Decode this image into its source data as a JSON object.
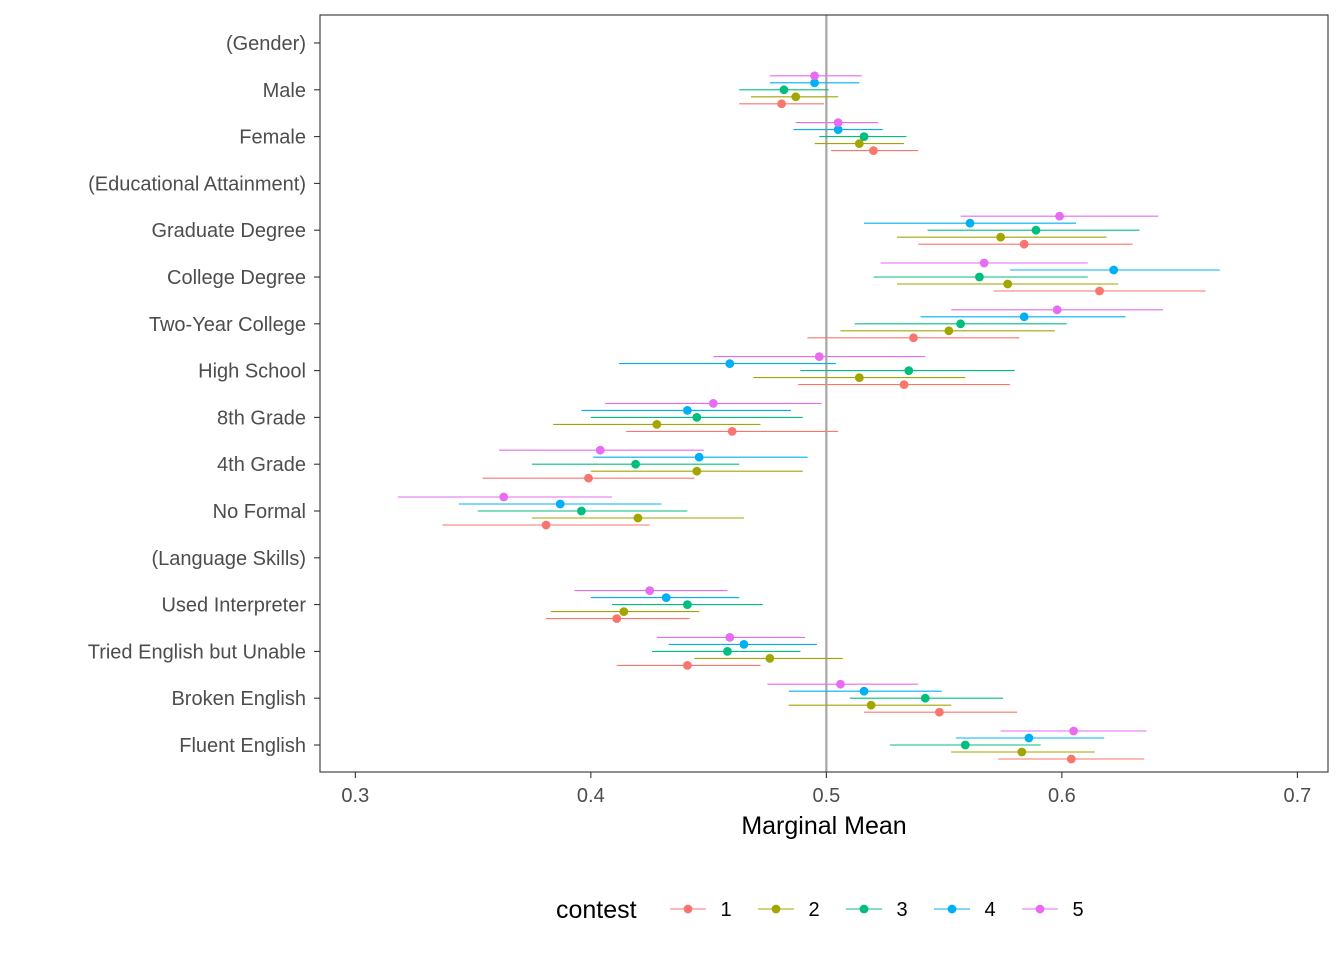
{
  "chart_data": {
    "type": "scatter",
    "subtype": "coefficient-plot-with-error-bars",
    "xlabel": "Marginal Mean",
    "ylabel": "",
    "xlim": [
      0.285,
      0.713
    ],
    "x_ticks": [
      "0.3",
      "0.4",
      "0.5",
      "0.6",
      "0.7"
    ],
    "reference_line": 0.5,
    "grid": false,
    "legend_position": "bottom",
    "legend": {
      "title": "contest",
      "entries": [
        {
          "name": "1",
          "color": "#F8766D"
        },
        {
          "name": "2",
          "color": "#A3A500"
        },
        {
          "name": "3",
          "color": "#00BF7D"
        },
        {
          "name": "4",
          "color": "#00B0F6"
        },
        {
          "name": "5",
          "color": "#E76BF3"
        }
      ]
    },
    "categories": [
      "(Gender)",
      "Male",
      "Female",
      "(Educational Attainment)",
      "Graduate Degree",
      "College Degree",
      "Two-Year College",
      "High School",
      "8th Grade",
      "4th Grade",
      "No Formal",
      "(Language Skills)",
      "Used Interpreter",
      "Tried English but Unable",
      "Broken English",
      "Fluent English"
    ],
    "series": [
      {
        "name": "1",
        "points": [
          {
            "category": "Male",
            "estimate": 0.481,
            "lower": 0.463,
            "upper": 0.499
          },
          {
            "category": "Female",
            "estimate": 0.52,
            "lower": 0.502,
            "upper": 0.539
          },
          {
            "category": "Graduate Degree",
            "estimate": 0.584,
            "lower": 0.539,
            "upper": 0.63
          },
          {
            "category": "College Degree",
            "estimate": 0.616,
            "lower": 0.571,
            "upper": 0.661
          },
          {
            "category": "Two-Year College",
            "estimate": 0.537,
            "lower": 0.492,
            "upper": 0.582
          },
          {
            "category": "High School",
            "estimate": 0.533,
            "lower": 0.488,
            "upper": 0.578
          },
          {
            "category": "8th Grade",
            "estimate": 0.46,
            "lower": 0.415,
            "upper": 0.505
          },
          {
            "category": "4th Grade",
            "estimate": 0.399,
            "lower": 0.354,
            "upper": 0.444
          },
          {
            "category": "No Formal",
            "estimate": 0.381,
            "lower": 0.337,
            "upper": 0.425
          },
          {
            "category": "Used Interpreter",
            "estimate": 0.411,
            "lower": 0.381,
            "upper": 0.442
          },
          {
            "category": "Tried English but Unable",
            "estimate": 0.441,
            "lower": 0.411,
            "upper": 0.472
          },
          {
            "category": "Broken English",
            "estimate": 0.548,
            "lower": 0.516,
            "upper": 0.581
          },
          {
            "category": "Fluent English",
            "estimate": 0.604,
            "lower": 0.573,
            "upper": 0.635
          }
        ]
      },
      {
        "name": "2",
        "points": [
          {
            "category": "Male",
            "estimate": 0.487,
            "lower": 0.468,
            "upper": 0.505
          },
          {
            "category": "Female",
            "estimate": 0.514,
            "lower": 0.495,
            "upper": 0.533
          },
          {
            "category": "Graduate Degree",
            "estimate": 0.574,
            "lower": 0.53,
            "upper": 0.619
          },
          {
            "category": "College Degree",
            "estimate": 0.577,
            "lower": 0.53,
            "upper": 0.624
          },
          {
            "category": "Two-Year College",
            "estimate": 0.552,
            "lower": 0.506,
            "upper": 0.597
          },
          {
            "category": "High School",
            "estimate": 0.514,
            "lower": 0.469,
            "upper": 0.559
          },
          {
            "category": "8th Grade",
            "estimate": 0.428,
            "lower": 0.384,
            "upper": 0.472
          },
          {
            "category": "4th Grade",
            "estimate": 0.445,
            "lower": 0.4,
            "upper": 0.49
          },
          {
            "category": "No Formal",
            "estimate": 0.42,
            "lower": 0.375,
            "upper": 0.465
          },
          {
            "category": "Used Interpreter",
            "estimate": 0.414,
            "lower": 0.383,
            "upper": 0.446
          },
          {
            "category": "Tried English but Unable",
            "estimate": 0.476,
            "lower": 0.444,
            "upper": 0.507
          },
          {
            "category": "Broken English",
            "estimate": 0.519,
            "lower": 0.484,
            "upper": 0.553
          },
          {
            "category": "Fluent English",
            "estimate": 0.583,
            "lower": 0.553,
            "upper": 0.614
          }
        ]
      },
      {
        "name": "3",
        "points": [
          {
            "category": "Male",
            "estimate": 0.482,
            "lower": 0.463,
            "upper": 0.501
          },
          {
            "category": "Female",
            "estimate": 0.516,
            "lower": 0.497,
            "upper": 0.534
          },
          {
            "category": "Graduate Degree",
            "estimate": 0.589,
            "lower": 0.543,
            "upper": 0.633
          },
          {
            "category": "College Degree",
            "estimate": 0.565,
            "lower": 0.52,
            "upper": 0.611
          },
          {
            "category": "Two-Year College",
            "estimate": 0.557,
            "lower": 0.512,
            "upper": 0.602
          },
          {
            "category": "High School",
            "estimate": 0.535,
            "lower": 0.489,
            "upper": 0.58
          },
          {
            "category": "8th Grade",
            "estimate": 0.445,
            "lower": 0.4,
            "upper": 0.49
          },
          {
            "category": "4th Grade",
            "estimate": 0.419,
            "lower": 0.375,
            "upper": 0.463
          },
          {
            "category": "No Formal",
            "estimate": 0.396,
            "lower": 0.352,
            "upper": 0.441
          },
          {
            "category": "Used Interpreter",
            "estimate": 0.441,
            "lower": 0.409,
            "upper": 0.473
          },
          {
            "category": "Tried English but Unable",
            "estimate": 0.458,
            "lower": 0.426,
            "upper": 0.489
          },
          {
            "category": "Broken English",
            "estimate": 0.542,
            "lower": 0.51,
            "upper": 0.575
          },
          {
            "category": "Fluent English",
            "estimate": 0.559,
            "lower": 0.527,
            "upper": 0.591
          }
        ]
      },
      {
        "name": "4",
        "points": [
          {
            "category": "Male",
            "estimate": 0.495,
            "lower": 0.476,
            "upper": 0.514
          },
          {
            "category": "Female",
            "estimate": 0.505,
            "lower": 0.486,
            "upper": 0.524
          },
          {
            "category": "Graduate Degree",
            "estimate": 0.561,
            "lower": 0.516,
            "upper": 0.606
          },
          {
            "category": "College Degree",
            "estimate": 0.622,
            "lower": 0.578,
            "upper": 0.667
          },
          {
            "category": "Two-Year College",
            "estimate": 0.584,
            "lower": 0.54,
            "upper": 0.627
          },
          {
            "category": "High School",
            "estimate": 0.459,
            "lower": 0.412,
            "upper": 0.504
          },
          {
            "category": "8th Grade",
            "estimate": 0.441,
            "lower": 0.396,
            "upper": 0.485
          },
          {
            "category": "4th Grade",
            "estimate": 0.446,
            "lower": 0.401,
            "upper": 0.492
          },
          {
            "category": "No Formal",
            "estimate": 0.387,
            "lower": 0.344,
            "upper": 0.43
          },
          {
            "category": "Used Interpreter",
            "estimate": 0.432,
            "lower": 0.4,
            "upper": 0.463
          },
          {
            "category": "Tried English but Unable",
            "estimate": 0.465,
            "lower": 0.433,
            "upper": 0.496
          },
          {
            "category": "Broken English",
            "estimate": 0.516,
            "lower": 0.484,
            "upper": 0.549
          },
          {
            "category": "Fluent English",
            "estimate": 0.586,
            "lower": 0.555,
            "upper": 0.618
          }
        ]
      },
      {
        "name": "5",
        "points": [
          {
            "category": "Male",
            "estimate": 0.495,
            "lower": 0.476,
            "upper": 0.515
          },
          {
            "category": "Female",
            "estimate": 0.505,
            "lower": 0.487,
            "upper": 0.522
          },
          {
            "category": "Graduate Degree",
            "estimate": 0.599,
            "lower": 0.557,
            "upper": 0.641
          },
          {
            "category": "College Degree",
            "estimate": 0.567,
            "lower": 0.523,
            "upper": 0.611
          },
          {
            "category": "Two-Year College",
            "estimate": 0.598,
            "lower": 0.553,
            "upper": 0.643
          },
          {
            "category": "High School",
            "estimate": 0.497,
            "lower": 0.452,
            "upper": 0.542
          },
          {
            "category": "8th Grade",
            "estimate": 0.452,
            "lower": 0.406,
            "upper": 0.498
          },
          {
            "category": "4th Grade",
            "estimate": 0.404,
            "lower": 0.361,
            "upper": 0.448
          },
          {
            "category": "No Formal",
            "estimate": 0.363,
            "lower": 0.318,
            "upper": 0.409
          },
          {
            "category": "Used Interpreter",
            "estimate": 0.425,
            "lower": 0.393,
            "upper": 0.458
          },
          {
            "category": "Tried English but Unable",
            "estimate": 0.459,
            "lower": 0.428,
            "upper": 0.491
          },
          {
            "category": "Broken English",
            "estimate": 0.506,
            "lower": 0.475,
            "upper": 0.539
          },
          {
            "category": "Fluent English",
            "estimate": 0.605,
            "lower": 0.574,
            "upper": 0.636
          }
        ]
      }
    ]
  }
}
